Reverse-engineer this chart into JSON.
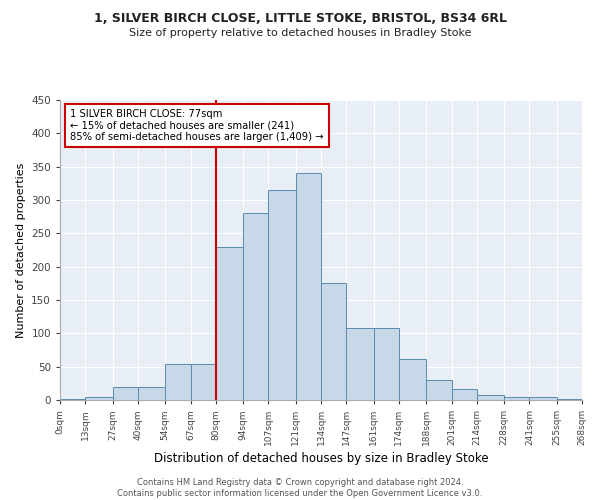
{
  "title_line1": "1, SILVER BIRCH CLOSE, LITTLE STOKE, BRISTOL, BS34 6RL",
  "title_line2": "Size of property relative to detached houses in Bradley Stoke",
  "xlabel": "Distribution of detached houses by size in Bradley Stoke",
  "ylabel": "Number of detached properties",
  "bin_edges": [
    0,
    13,
    27,
    40,
    54,
    67,
    80,
    94,
    107,
    121,
    134,
    147,
    161,
    174,
    188,
    201,
    214,
    228,
    241,
    255,
    268
  ],
  "bar_heights": [
    2,
    5,
    20,
    20,
    54,
    54,
    230,
    280,
    315,
    340,
    175,
    108,
    108,
    62,
    30,
    16,
    8,
    4,
    4,
    2
  ],
  "bar_color": "#c8d8e8",
  "bar_edge_color": "#5a8ab0",
  "vline_x": 80,
  "vline_color": "#cc0000",
  "annotation_text": "1 SILVER BIRCH CLOSE: 77sqm\n← 15% of detached houses are smaller (241)\n85% of semi-detached houses are larger (1,409) →",
  "annotation_box_color": "#ffffff",
  "annotation_box_edge": "#cc0000",
  "ylim": [
    0,
    450
  ],
  "yticks": [
    0,
    50,
    100,
    150,
    200,
    250,
    300,
    350,
    400,
    450
  ],
  "bg_color": "#e8eef5",
  "footer_text": "Contains HM Land Registry data © Crown copyright and database right 2024.\nContains public sector information licensed under the Open Government Licence v3.0.",
  "tick_labels": [
    "0sqm",
    "13sqm",
    "27sqm",
    "40sqm",
    "54sqm",
    "67sqm",
    "80sqm",
    "94sqm",
    "107sqm",
    "121sqm",
    "134sqm",
    "147sqm",
    "161sqm",
    "174sqm",
    "188sqm",
    "201sqm",
    "214sqm",
    "228sqm",
    "241sqm",
    "255sqm",
    "268sqm"
  ]
}
